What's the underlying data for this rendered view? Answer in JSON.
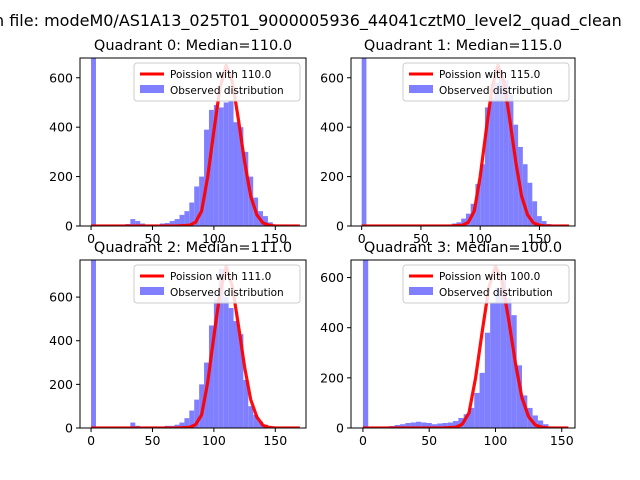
{
  "figure": {
    "suptitle": "n file: modeM0/AS1A13_025T01_9000005936_44041cztM0_level2_quad_clean"
  },
  "colors": {
    "histogram": "#7f7fff",
    "poisson_curve": "#ff0000",
    "legend_border": "#cccccc"
  },
  "chart_data": [
    {
      "type": "bar",
      "title": "Quadrant 0: Median=110.0",
      "median": 110,
      "xlim": [
        -9,
        175
      ],
      "ylim": [
        0,
        680
      ],
      "xticks": [
        0,
        50,
        100,
        150
      ],
      "yticks": [
        0,
        200,
        400,
        600
      ],
      "legend": {
        "position": "upper right",
        "entries": [
          "Poission with 110.0",
          "Observed distribution"
        ]
      },
      "series": [
        {
          "name": "Poission with 110.0",
          "type": "line",
          "x": [
            0,
            70,
            80,
            85,
            90,
            95,
            100,
            105,
            110,
            115,
            120,
            125,
            130,
            135,
            140,
            145,
            150,
            160,
            170
          ],
          "values": [
            0,
            0,
            3,
            15,
            60,
            200,
            385,
            560,
            650,
            585,
            430,
            260,
            120,
            45,
            12,
            3,
            0,
            0,
            0
          ]
        },
        {
          "name": "Observed distribution",
          "type": "bar",
          "bin_edges": [
            0,
            4,
            8,
            12,
            16,
            20,
            24,
            28,
            32,
            36,
            40,
            44,
            48,
            52,
            56,
            60,
            64,
            68,
            72,
            76,
            80,
            84,
            88,
            92,
            96,
            100,
            104,
            108,
            112,
            116,
            120,
            124,
            128,
            132,
            136,
            140,
            144,
            148,
            152,
            156,
            160,
            164,
            168
          ],
          "values": [
            1000,
            0,
            0,
            0,
            0,
            0,
            0,
            8,
            28,
            20,
            10,
            5,
            5,
            5,
            10,
            12,
            20,
            28,
            45,
            60,
            95,
            160,
            200,
            390,
            470,
            490,
            480,
            500,
            505,
            420,
            400,
            300,
            200,
            115,
            60,
            40,
            15,
            5,
            2,
            0,
            0,
            0
          ]
        }
      ]
    },
    {
      "type": "bar",
      "title": "Quadrant 1: Median=115.0",
      "median": 115,
      "xlim": [
        -9,
        180
      ],
      "ylim": [
        0,
        680
      ],
      "xticks": [
        0,
        50,
        100,
        150
      ],
      "yticks": [
        0,
        200,
        400,
        600
      ],
      "legend": {
        "position": "upper right",
        "entries": [
          "Poission with 115.0",
          "Observed distribution"
        ]
      },
      "series": [
        {
          "name": "Poission with 115.0",
          "type": "line",
          "x": [
            0,
            75,
            85,
            90,
            95,
            100,
            105,
            110,
            115,
            120,
            125,
            130,
            135,
            140,
            145,
            150,
            155,
            165,
            175
          ],
          "values": [
            0,
            0,
            3,
            15,
            60,
            200,
            385,
            560,
            650,
            585,
            430,
            260,
            120,
            45,
            12,
            3,
            0,
            0,
            0
          ]
        },
        {
          "name": "Observed distribution",
          "type": "bar",
          "bin_edges": [
            0,
            4,
            8,
            12,
            16,
            20,
            24,
            28,
            32,
            36,
            40,
            44,
            48,
            52,
            56,
            60,
            64,
            68,
            72,
            76,
            80,
            84,
            88,
            92,
            96,
            100,
            104,
            108,
            112,
            116,
            120,
            124,
            128,
            132,
            136,
            140,
            144,
            148,
            152,
            156,
            160,
            164,
            168,
            172
          ],
          "values": [
            1000,
            0,
            0,
            0,
            0,
            0,
            0,
            0,
            0,
            0,
            0,
            0,
            0,
            0,
            0,
            0,
            0,
            2,
            5,
            10,
            15,
            30,
            50,
            90,
            170,
            250,
            480,
            520,
            580,
            600,
            590,
            530,
            410,
            320,
            250,
            175,
            100,
            40,
            20,
            8,
            3,
            0,
            0
          ]
        }
      ]
    },
    {
      "type": "bar",
      "title": "Quadrant 2: Median=111.0",
      "median": 111,
      "xlim": [
        -9,
        175
      ],
      "ylim": [
        0,
        770
      ],
      "xticks": [
        0,
        50,
        100,
        150
      ],
      "yticks": [
        0,
        200,
        400,
        600
      ],
      "legend": {
        "position": "upper right",
        "entries": [
          "Poission with 111.0",
          "Observed distribution"
        ]
      },
      "series": [
        {
          "name": "Poission with 111.0",
          "type": "line",
          "x": [
            0,
            70,
            80,
            85,
            90,
            95,
            100,
            105,
            110,
            115,
            120,
            125,
            130,
            135,
            140,
            145,
            150,
            160,
            170
          ],
          "values": [
            0,
            0,
            3,
            15,
            60,
            210,
            420,
            620,
            740,
            650,
            470,
            280,
            130,
            50,
            12,
            3,
            0,
            0,
            0
          ]
        },
        {
          "name": "Observed distribution",
          "type": "bar",
          "bin_edges": [
            0,
            4,
            8,
            12,
            16,
            20,
            24,
            28,
            32,
            36,
            40,
            44,
            48,
            52,
            56,
            60,
            64,
            68,
            72,
            76,
            80,
            84,
            88,
            92,
            96,
            100,
            104,
            108,
            112,
            116,
            120,
            124,
            128,
            132,
            136,
            140,
            144,
            148,
            152,
            156,
            160,
            164,
            168
          ],
          "values": [
            1000,
            0,
            0,
            0,
            0,
            0,
            0,
            0,
            25,
            10,
            5,
            5,
            5,
            5,
            5,
            10,
            10,
            15,
            25,
            45,
            80,
            130,
            200,
            300,
            470,
            590,
            730,
            600,
            550,
            490,
            430,
            220,
            100,
            60,
            30,
            15,
            5,
            2,
            0,
            0,
            0,
            0
          ]
        }
      ]
    },
    {
      "type": "bar",
      "title": "Quadrant 3: Median=100.0",
      "median": 100,
      "xlim": [
        -9,
        160
      ],
      "ylim": [
        0,
        670
      ],
      "xticks": [
        0,
        50,
        100,
        150
      ],
      "yticks": [
        0,
        200,
        400,
        600
      ],
      "legend": {
        "position": "upper right",
        "entries": [
          "Poission with 100.0",
          "Observed distribution"
        ]
      },
      "series": [
        {
          "name": "Poission with 100.0",
          "type": "line",
          "x": [
            0,
            60,
            70,
            75,
            80,
            85,
            90,
            95,
            100,
            105,
            110,
            115,
            120,
            125,
            130,
            135,
            140,
            150,
            155
          ],
          "values": [
            0,
            0,
            3,
            15,
            60,
            200,
            385,
            560,
            645,
            585,
            430,
            260,
            120,
            45,
            12,
            3,
            0,
            0,
            0
          ]
        },
        {
          "name": "Observed distribution",
          "type": "bar",
          "bin_edges": [
            0,
            4,
            8,
            12,
            16,
            20,
            24,
            28,
            32,
            36,
            40,
            44,
            48,
            52,
            56,
            60,
            64,
            68,
            72,
            76,
            80,
            84,
            88,
            92,
            96,
            100,
            104,
            108,
            112,
            116,
            120,
            124,
            128,
            132,
            136,
            140,
            144,
            148,
            152
          ],
          "values": [
            1000,
            0,
            0,
            0,
            5,
            8,
            12,
            15,
            20,
            22,
            25,
            22,
            20,
            15,
            18,
            20,
            22,
            28,
            40,
            55,
            80,
            140,
            220,
            380,
            500,
            560,
            590,
            520,
            450,
            250,
            130,
            80,
            50,
            30,
            15,
            5,
            2,
            0
          ]
        }
      ]
    }
  ]
}
